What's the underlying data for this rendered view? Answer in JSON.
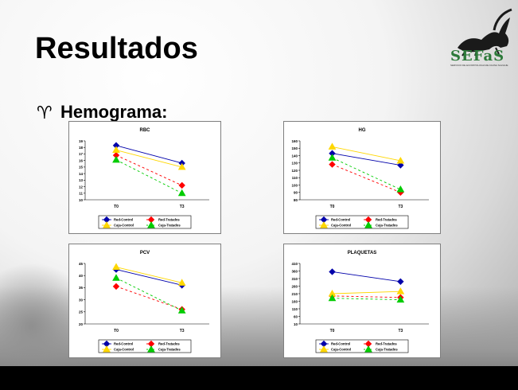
{
  "slide": {
    "title": "Resultados",
    "bullet": "Hemograma:",
    "logo_text": "SEFaS",
    "logo_subtext": "SERVICIO DE ECOPATOLOGIA DE FAUNA SALVAJE"
  },
  "colors": {
    "red_control": "#0000aa",
    "red_tratados": "#ff0000",
    "caja_control": "#ffd700",
    "caja_tratados": "#00cc00"
  },
  "chart_data": [
    {
      "type": "line",
      "title": "RBC",
      "categories": [
        "T0",
        "T3"
      ],
      "ylim": [
        10,
        19
      ],
      "yticks": [
        10,
        11,
        12,
        13,
        14,
        15,
        16,
        17,
        18,
        19
      ],
      "series": [
        {
          "name": "Red-Control",
          "values": [
            18.3,
            15.6
          ]
        },
        {
          "name": "Red-Tratados",
          "values": [
            16.8,
            12.2
          ]
        },
        {
          "name": "Caja-Control",
          "values": [
            17.6,
            15.0
          ]
        },
        {
          "name": "Caja-Tratados",
          "values": [
            16.1,
            11.0
          ]
        }
      ]
    },
    {
      "type": "line",
      "title": "HG",
      "categories": [
        "T0",
        "T3"
      ],
      "ylim": [
        80,
        160
      ],
      "yticks": [
        80,
        90,
        100,
        110,
        120,
        130,
        140,
        150,
        160
      ],
      "series": [
        {
          "name": "Red-Control",
          "values": [
            143,
            127
          ]
        },
        {
          "name": "Red-Tratados",
          "values": [
            128,
            90
          ]
        },
        {
          "name": "Caja-Control",
          "values": [
            152,
            133
          ]
        },
        {
          "name": "Caja-Tratados",
          "values": [
            137,
            94
          ]
        }
      ]
    },
    {
      "type": "line",
      "title": "PCV",
      "categories": [
        "T0",
        "T3"
      ],
      "ylim": [
        20,
        45
      ],
      "yticks": [
        20,
        25,
        30,
        35,
        40,
        45
      ],
      "series": [
        {
          "name": "Red-Control",
          "values": [
            42.5,
            36.0
          ]
        },
        {
          "name": "Red-Tratados",
          "values": [
            35.5,
            26.0
          ]
        },
        {
          "name": "Caja-Control",
          "values": [
            43.5,
            37.0
          ]
        },
        {
          "name": "Caja-Tratados",
          "values": [
            39.0,
            25.5
          ]
        }
      ]
    },
    {
      "type": "line",
      "title": "PLAQUETAS",
      "categories": [
        "T0",
        "T3"
      ],
      "ylim": [
        10,
        410
      ],
      "yticks": [
        10,
        60,
        110,
        160,
        210,
        260,
        310,
        360,
        410
      ],
      "series": [
        {
          "name": "Red-Control",
          "values": [
            355,
            290
          ]
        },
        {
          "name": "Red-Tratados",
          "values": [
            195,
            185
          ]
        },
        {
          "name": "Caja-Control",
          "values": [
            210,
            225
          ]
        },
        {
          "name": "Caja-Tratados",
          "values": [
            180,
            170
          ]
        }
      ]
    }
  ]
}
